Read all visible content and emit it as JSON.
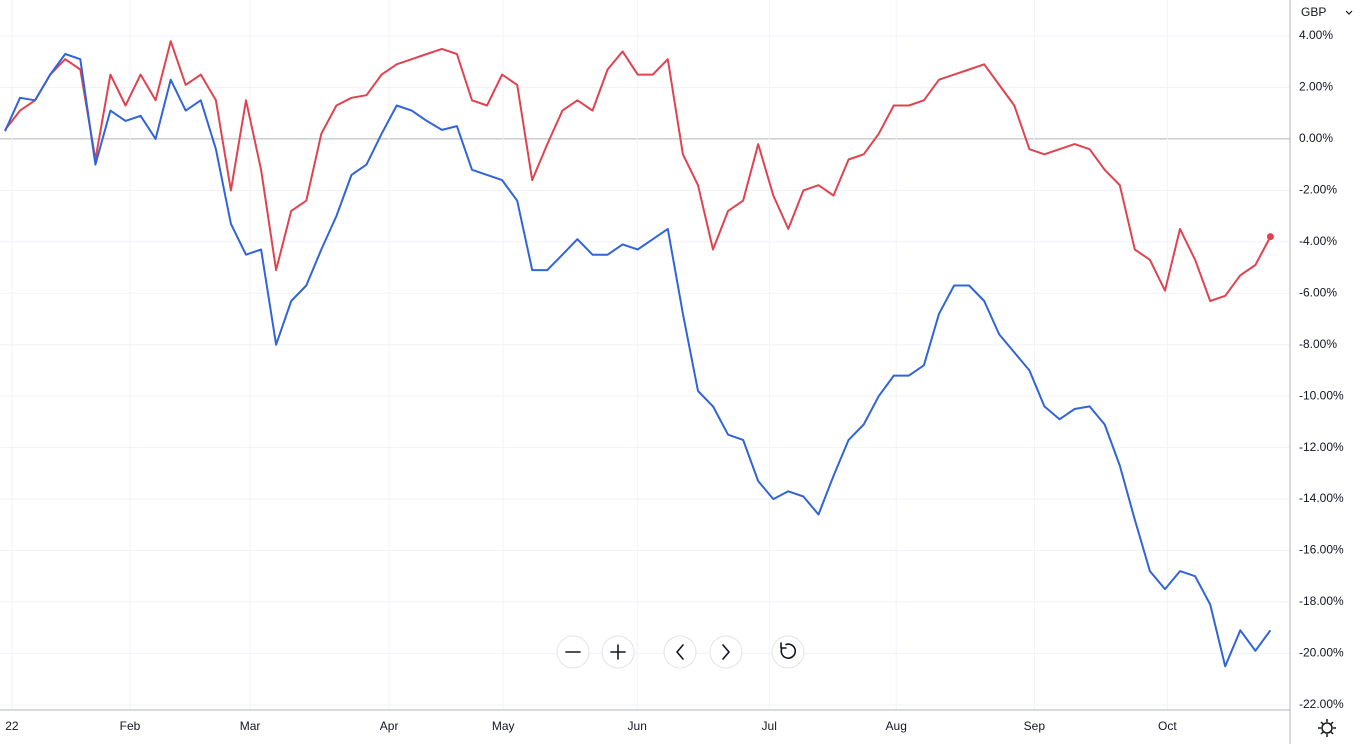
{
  "chart_data": {
    "type": "line",
    "currency": "GBP",
    "xlim": [
      -0.33,
      85.3
    ],
    "xticks": [
      {
        "value": 0.46,
        "label": "22"
      },
      {
        "value": 8.3,
        "label": "Feb"
      },
      {
        "value": 16.27,
        "label": "Mar"
      },
      {
        "value": 25.5,
        "label": "Apr"
      },
      {
        "value": 33.07,
        "label": "May"
      },
      {
        "value": 41.97,
        "label": "Jun"
      },
      {
        "value": 50.73,
        "label": "Jul"
      },
      {
        "value": 59.16,
        "label": "Aug"
      },
      {
        "value": 68.33,
        "label": "Sep"
      },
      {
        "value": 77.16,
        "label": "Oct"
      }
    ],
    "ylim": [
      -22.2,
      5.4
    ],
    "yticks": [
      {
        "value": 4,
        "label": "4.00%"
      },
      {
        "value": 2,
        "label": "2.00%"
      },
      {
        "value": 0,
        "label": "0.00%"
      },
      {
        "value": -2,
        "label": "-2.00%"
      },
      {
        "value": -4,
        "label": "-4.00%"
      },
      {
        "value": -6,
        "label": "-6.00%"
      },
      {
        "value": -8,
        "label": "-8.00%"
      },
      {
        "value": -10,
        "label": "-10.00%"
      },
      {
        "value": -12,
        "label": "-12.00%"
      },
      {
        "value": -14,
        "label": "-14.00%"
      },
      {
        "value": -16,
        "label": "-16.00%"
      },
      {
        "value": -18,
        "label": "-18.00%"
      },
      {
        "value": -20,
        "label": "-20.00%"
      },
      {
        "value": -22,
        "label": "-22.00%"
      }
    ],
    "grid": true,
    "series": [
      {
        "color": "#e0434f",
        "values": [
          0.35,
          1.1,
          1.5,
          2.5,
          3.1,
          2.7,
          -0.8,
          2.5,
          1.3,
          2.5,
          1.5,
          3.8,
          2.1,
          2.5,
          1.5,
          -2.0,
          1.5,
          -1.2,
          -5.1,
          -2.8,
          -2.4,
          0.2,
          1.3,
          1.6,
          1.7,
          2.5,
          2.9,
          3.1,
          3.3,
          3.5,
          3.3,
          1.5,
          1.3,
          2.5,
          2.1,
          -1.6,
          -0.2,
          1.1,
          1.5,
          1.1,
          2.7,
          3.4,
          2.5,
          2.5,
          3.1,
          -0.6,
          -1.8,
          -4.3,
          -2.8,
          -2.4,
          -0.2,
          -2.2,
          -3.5,
          -2.0,
          -1.8,
          -2.2,
          -0.8,
          -0.6,
          0.2,
          1.3,
          1.3,
          1.5,
          2.3,
          2.5,
          2.7,
          2.9,
          2.1,
          1.3,
          -0.4,
          -0.6,
          -0.4,
          -0.2,
          -0.4,
          -1.2,
          -1.8,
          -4.3,
          -4.7,
          -5.9,
          -3.5,
          -4.7,
          -6.3,
          -6.1,
          -5.3,
          -4.9,
          -3.8
        ]
      },
      {
        "color": "#3164d8",
        "values": [
          0.3,
          1.6,
          1.5,
          2.5,
          3.3,
          3.1,
          -1.0,
          1.1,
          0.7,
          0.9,
          0,
          2.3,
          1.1,
          1.5,
          -0.4,
          -3.3,
          -4.5,
          -4.3,
          -8.0,
          -6.3,
          -5.7,
          -4.3,
          -3.0,
          -1.4,
          -1.0,
          0.2,
          1.3,
          1.1,
          0.7,
          0.35,
          0.5,
          -1.2,
          -1.4,
          -1.6,
          -2.4,
          -5.1,
          -5.1,
          -4.5,
          -3.9,
          -4.5,
          -4.5,
          -4.1,
          -4.3,
          -3.9,
          -3.5,
          -6.8,
          -9.8,
          -10.4,
          -11.5,
          -11.7,
          -13.3,
          -14.0,
          -13.7,
          -13.9,
          -14.6,
          -13.1,
          -11.7,
          -11.1,
          -10.0,
          -9.2,
          -9.2,
          -8.8,
          -6.8,
          -5.7,
          -5.7,
          -6.3,
          -7.6,
          -8.3,
          -9.0,
          -10.4,
          -10.9,
          -10.5,
          -10.4,
          -11.1,
          -12.7,
          -14.8,
          -16.8,
          -17.5,
          -16.8,
          -17.0,
          -18.1,
          -20.5,
          -19.1,
          -19.9,
          -19.1
        ]
      }
    ]
  }
}
